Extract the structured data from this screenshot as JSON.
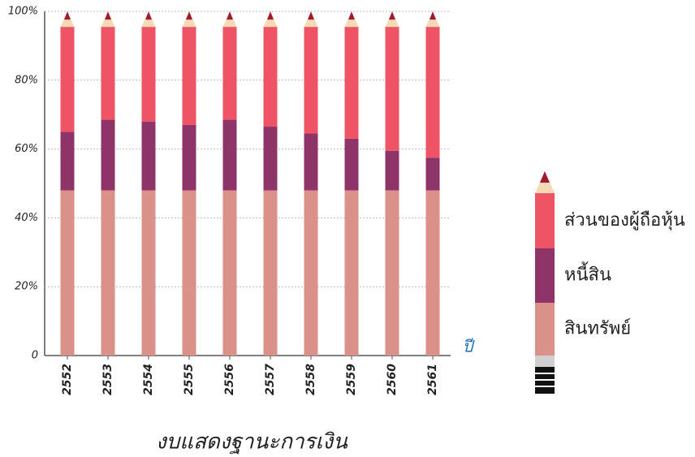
{
  "chart_data": {
    "type": "stacked-bar",
    "title": "งบแสดงฐานะการเงิน",
    "x_label": "ปี",
    "categories": [
      "2552",
      "2553",
      "2554",
      "2555",
      "2556",
      "2557",
      "2558",
      "2559",
      "2560",
      "2561"
    ],
    "series": [
      {
        "name": "สินทรัพย์",
        "color": "#d9918a",
        "values": [
          48,
          48,
          48,
          48,
          48,
          48,
          48,
          48,
          48,
          48
        ]
      },
      {
        "name": "หนี้สิน",
        "color": "#8e3468",
        "values": [
          17,
          20.5,
          20,
          19,
          20.5,
          18.5,
          16.5,
          15,
          11.5,
          9.5
        ]
      },
      {
        "name": "ส่วนของผู้ถือหุ้น",
        "color": "#ef5466",
        "values": [
          30.5,
          27,
          27.5,
          28.5,
          27,
          29,
          31,
          32.5,
          36,
          38
        ]
      }
    ],
    "ylim": [
      0,
      100
    ],
    "yticks": [
      0,
      {
        "value": 20,
        "label": "20%"
      },
      {
        "value": 40,
        "label": "40%"
      },
      {
        "value": 60,
        "label": "60%"
      },
      {
        "value": 80,
        "label": "80%"
      },
      {
        "value": 100,
        "label": "100%"
      }
    ],
    "grid": true
  }
}
